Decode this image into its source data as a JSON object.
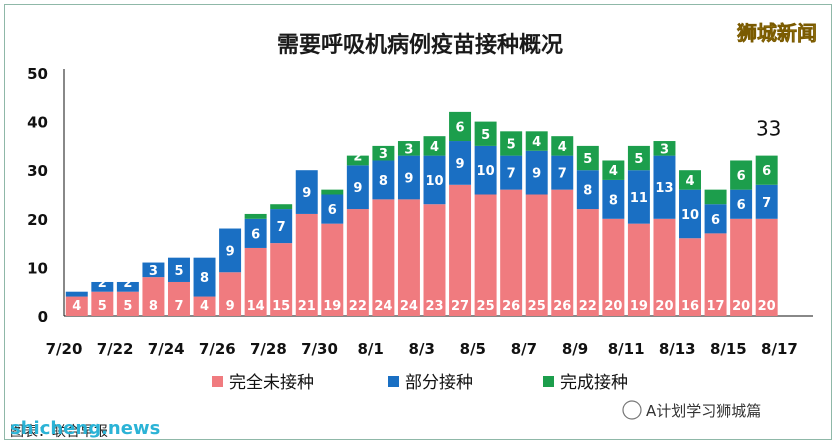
{
  "chart_data": {
    "type": "bar",
    "stacked": true,
    "title": "需要呼吸机病例疫苗接种概况",
    "xlabel": "",
    "ylabel": "",
    "ylim": [
      0,
      50
    ],
    "yticks": [
      0,
      10,
      20,
      30,
      40,
      50
    ],
    "grid": false,
    "legend_position": "bottom",
    "x_tick_labels": [
      "7/20",
      "7/22",
      "7/24",
      "7/26",
      "7/28",
      "7/30",
      "8/1",
      "8/3",
      "8/5",
      "8/7",
      "8/9",
      "8/11",
      "8/13",
      "8/15",
      "8/17"
    ],
    "categories": [
      "7/20",
      "7/21",
      "7/22",
      "7/23",
      "7/24",
      "7/25",
      "7/26",
      "7/27",
      "7/28",
      "7/29",
      "7/30",
      "7/31",
      "8/1",
      "8/2",
      "8/3",
      "8/4",
      "8/5",
      "8/6",
      "8/7",
      "8/8",
      "8/9",
      "8/10",
      "8/11",
      "8/12",
      "8/13",
      "8/14",
      "8/15",
      "8/16"
    ],
    "series": [
      {
        "name": "完全未接种",
        "color": "#f07b7f",
        "values": [
          4,
          5,
          5,
          8,
          7,
          4,
          9,
          14,
          15,
          21,
          19,
          22,
          24,
          24,
          23,
          27,
          25,
          26,
          25,
          26,
          22,
          20,
          19,
          20,
          16,
          17,
          20,
          20
        ]
      },
      {
        "name": "部分接种",
        "color": "#1a6fc3",
        "values": [
          1,
          2,
          2,
          3,
          5,
          8,
          9,
          6,
          7,
          9,
          6,
          9,
          8,
          9,
          10,
          9,
          10,
          7,
          9,
          7,
          8,
          8,
          11,
          13,
          10,
          6,
          6,
          7
        ]
      },
      {
        "name": "完成接种",
        "color": "#1c9e4c",
        "values": [
          0,
          0,
          0,
          0,
          0,
          0,
          0,
          1,
          1,
          0,
          1,
          2,
          3,
          3,
          4,
          6,
          5,
          5,
          4,
          4,
          5,
          4,
          5,
          3,
          4,
          3,
          6,
          6
        ]
      }
    ],
    "data_labels": {
      "完全未接种": [
        4,
        5,
        5,
        8,
        7,
        4,
        9,
        14,
        15,
        21,
        19,
        22,
        24,
        24,
        23,
        27,
        25,
        26,
        25,
        26,
        22,
        20,
        19,
        20,
        16,
        17,
        20,
        20
      ],
      "部分接种": [
        null,
        2,
        2,
        3,
        5,
        8,
        9,
        6,
        7,
        9,
        6,
        9,
        8,
        9,
        10,
        9,
        10,
        7,
        9,
        7,
        8,
        8,
        11,
        13,
        10,
        6,
        6,
        7
      ],
      "完成接种": [
        null,
        null,
        null,
        null,
        null,
        null,
        null,
        null,
        null,
        null,
        null,
        2,
        3,
        3,
        4,
        6,
        5,
        5,
        4,
        4,
        5,
        4,
        5,
        3,
        4,
        null,
        6,
        6
      ]
    },
    "annotations": [
      {
        "text": "33",
        "category": "8/16"
      }
    ]
  },
  "watermark": {
    "brand": "狮城新闻",
    "wechat": "A计划学习狮城篇",
    "site": "shicheng.news",
    "source": "图表：联合早报"
  },
  "colors": {
    "frame": "#8fb8a8",
    "axis": "#111111"
  }
}
